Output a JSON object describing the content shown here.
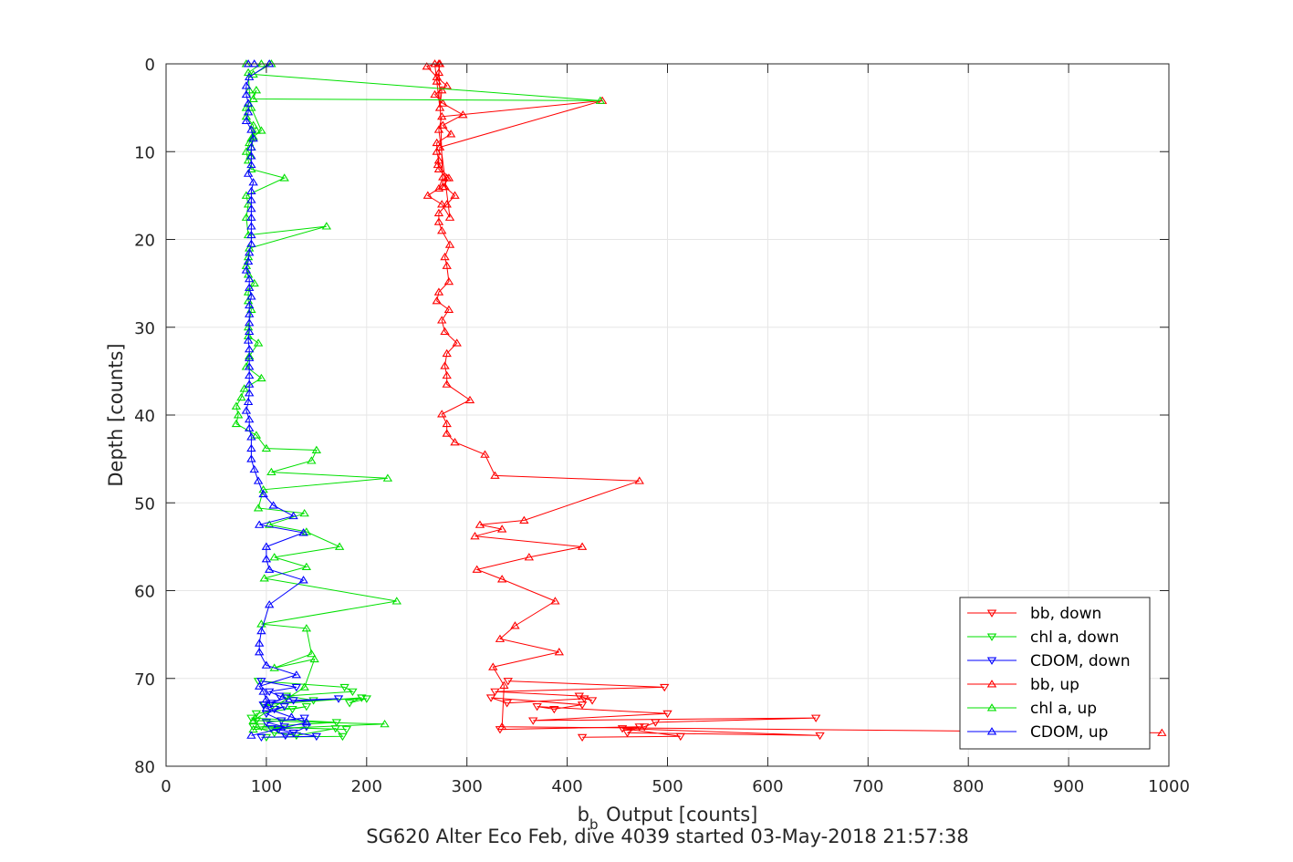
{
  "chart_data": {
    "type": "line",
    "xlabel_main": "b",
    "xlabel_sub": "b",
    "xlabel_rest": " Output [counts]",
    "ylabel": "Depth [counts]",
    "caption": "SG620 Alter Eco Feb, dive 4039 started 03-May-2018 21:57:38",
    "xlim": [
      0,
      1000
    ],
    "ylim": [
      0,
      80
    ],
    "y_reversed": true,
    "grid": true,
    "legend_position": "bottom-right",
    "x_ticks": [
      0,
      100,
      200,
      300,
      400,
      500,
      600,
      700,
      800,
      900,
      1000
    ],
    "y_ticks": [
      0,
      10,
      20,
      30,
      40,
      50,
      60,
      70,
      80
    ],
    "series": [
      {
        "name": "bb, down",
        "color": "#ff0000",
        "marker": "triangle-down",
        "x": [
          341,
          497,
          328,
          412,
          425,
          417,
          340,
          324,
          415,
          387,
          370,
          500,
          366,
          648,
          488,
          477,
          333,
          472,
          460,
          652,
          455,
          513,
          415
        ],
        "y": [
          70.3,
          71.0,
          71.5,
          72.0,
          72.5,
          72.3,
          72.8,
          72.2,
          73.0,
          73.5,
          73.2,
          74.0,
          74.8,
          74.5,
          75.0,
          75.5,
          75.8,
          75.5,
          76.2,
          76.5,
          75.7,
          76.6,
          76.7
        ]
      },
      {
        "name": "chl a, down",
        "color": "#00e000",
        "marker": "triangle-down",
        "x": [
          92,
          178,
          186,
          120,
          147,
          200,
          183,
          195,
          98,
          126,
          140,
          90,
          90,
          85,
          170,
          95,
          180,
          87,
          108,
          130,
          169,
          176,
          100
        ],
        "y": [
          70.3,
          71.0,
          71.5,
          72.0,
          72.5,
          72.3,
          72.8,
          72.2,
          73.0,
          73.5,
          73.2,
          74.0,
          74.8,
          74.5,
          75.0,
          75.5,
          75.8,
          75.5,
          76.2,
          76.5,
          75.7,
          76.6,
          76.7
        ]
      },
      {
        "name": "CDOM, down",
        "color": "#0000ff",
        "marker": "triangle-down",
        "x": [
          95,
          130,
          103,
          113,
          127,
          172,
          105,
          120,
          97,
          108,
          118,
          100,
          115,
          138,
          100,
          118,
          112,
          140,
          127,
          119,
          105,
          150,
          95
        ],
        "y": [
          70.3,
          71.0,
          71.5,
          72.0,
          72.5,
          72.3,
          72.8,
          72.2,
          73.0,
          73.5,
          73.2,
          74.0,
          74.8,
          74.5,
          75.0,
          75.5,
          75.8,
          75.5,
          76.2,
          76.5,
          75.7,
          76.6,
          76.7
        ]
      },
      {
        "name": "bb, up",
        "color": "#ff0000",
        "marker": "triangle-up",
        "x": [
          993,
          335,
          337,
          326,
          392,
          333,
          348,
          388,
          335,
          310,
          362,
          415,
          308,
          335,
          313,
          357,
          472,
          328,
          318,
          288,
          280,
          280,
          275,
          303,
          280,
          280,
          278,
          280,
          290,
          278,
          275,
          282,
          270,
          272,
          282,
          280,
          278,
          283,
          275,
          272,
          272,
          280,
          288,
          278,
          280,
          272,
          272,
          270,
          270,
          284,
          276,
          296,
          276,
          268,
          280,
          270,
          260,
          268,
          273,
          275,
          270,
          272,
          273,
          272,
          276,
          282,
          271,
          273,
          435,
          275,
          272,
          283,
          275,
          261,
          272,
          276
        ],
        "y": [
          76.2,
          75.5,
          70.8,
          68.7,
          67.0,
          65.5,
          64.0,
          61.2,
          58.7,
          57.6,
          56.2,
          55.0,
          53.8,
          53.0,
          52.5,
          52.0,
          47.5,
          46.9,
          44.5,
          43.1,
          42.1,
          41.0,
          39.9,
          38.3,
          36.5,
          35.5,
          34.4,
          33.0,
          31.8,
          30.5,
          29.2,
          28.0,
          27.0,
          26.0,
          24.8,
          23.0,
          22.0,
          20.6,
          19.0,
          18.0,
          17.0,
          16.0,
          15.0,
          14.0,
          13.0,
          12.0,
          11.0,
          10.0,
          9.0,
          8.0,
          7.0,
          5.8,
          4.5,
          3.5,
          2.5,
          1.5,
          0.3,
          0.0,
          5.0,
          3.0,
          2.0,
          1.0,
          0.0,
          0.0,
          14.0,
          13.0,
          11.5,
          9.5,
          4.2,
          6.0,
          7.5,
          17.5,
          16.0,
          15.0,
          14.2,
          12.9
        ]
      },
      {
        "name": "chl a, up",
        "color": "#00e000",
        "marker": "triangle-up",
        "x": [
          87,
          218,
          87,
          138,
          148,
          108,
          145,
          140,
          95,
          230,
          98,
          140,
          108,
          173,
          140,
          103,
          138,
          92,
          97,
          221,
          105,
          145,
          150,
          100,
          90,
          70,
          72,
          70,
          75,
          78,
          95,
          80,
          83,
          92,
          82,
          82,
          85,
          82,
          82,
          88,
          82,
          80,
          82,
          83,
          160,
          82,
          80,
          82,
          80,
          118,
          85,
          82,
          80,
          83,
          90,
          85,
          87,
          80,
          80,
          90,
          87,
          433,
          87,
          105,
          80,
          95,
          82,
          83,
          85,
          95,
          87,
          85,
          84
        ],
        "y": [
          75.8,
          75.2,
          74.8,
          71.0,
          67.8,
          68.8,
          67.2,
          64.3,
          63.8,
          61.2,
          58.6,
          57.3,
          56.2,
          55.0,
          53.3,
          52.5,
          51.2,
          50.6,
          48.5,
          47.2,
          46.5,
          45.2,
          44.0,
          43.8,
          42.3,
          41.0,
          40.0,
          39.0,
          38.0,
          37.0,
          35.8,
          34.5,
          33.3,
          31.8,
          31.0,
          30.0,
          28.0,
          27.0,
          26.0,
          25.0,
          24.0,
          23.0,
          22.0,
          21.0,
          18.5,
          19.5,
          17.5,
          16.0,
          15.0,
          13.0,
          12.0,
          11.0,
          10.0,
          9.0,
          7.6,
          8.5,
          7.0,
          6.0,
          5.0,
          3.0,
          4.0,
          4.2,
          1.2,
          0.0,
          0.0,
          0.0,
          1.0,
          3.0,
          5.0,
          7.6,
          8.3,
          9.5,
          10.5
        ]
      },
      {
        "name": "CDOM, up",
        "color": "#0000ff",
        "marker": "triangle-up",
        "x": [
          85,
          140,
          125,
          100,
          100,
          97,
          93,
          130,
          100,
          93,
          93,
          95,
          103,
          137,
          103,
          100,
          100,
          137,
          93,
          127,
          107,
          97,
          92,
          88,
          85,
          85,
          85,
          83,
          83,
          80,
          82,
          83,
          83,
          83,
          83,
          83,
          83,
          82,
          83,
          83,
          83,
          83,
          85,
          83,
          83,
          80,
          82,
          83,
          85,
          85,
          85,
          85,
          85,
          85,
          85,
          87,
          82,
          85,
          85,
          85,
          87,
          85,
          80,
          82,
          82,
          80,
          80,
          83,
          103,
          82,
          88
        ],
        "y": [
          76.5,
          75.0,
          74.4,
          73.4,
          72.4,
          71.5,
          70.9,
          69.6,
          68.5,
          67.0,
          66.0,
          64.6,
          61.6,
          58.8,
          57.6,
          56.4,
          55.0,
          53.4,
          52.5,
          51.5,
          50.3,
          49.0,
          47.5,
          46.2,
          45.0,
          43.8,
          42.5,
          41.5,
          40.5,
          39.5,
          38.5,
          37.5,
          36.5,
          35.5,
          34.5,
          33.5,
          32.5,
          31.5,
          30.5,
          29.5,
          28.5,
          27.5,
          26.5,
          25.5,
          24.5,
          23.5,
          22.5,
          21.5,
          20.5,
          19.5,
          18.5,
          17.5,
          16.5,
          15.5,
          14.5,
          13.5,
          12.5,
          11.5,
          10.5,
          9.5,
          8.5,
          7.5,
          6.5,
          5.5,
          4.5,
          3.5,
          2.5,
          1.5,
          0.0,
          0.0,
          0.0
        ]
      }
    ]
  }
}
